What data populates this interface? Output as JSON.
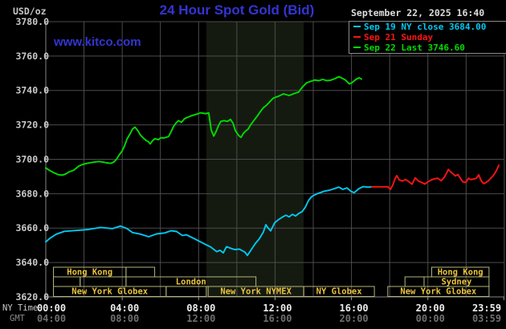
{
  "header": {
    "units_label": "USD/oz",
    "title": "24 Hour Spot Gold (Bid)",
    "datetime": "September 22, 2025 16:40",
    "watermark": "www.kitco.com"
  },
  "legend": {
    "items": [
      {
        "label": "Sep 19 NY close 3684.00",
        "color": "#00c8f0"
      },
      {
        "label": "Sep 21 Sunday",
        "color": "#ff1414"
      },
      {
        "label": "Sep 22 Last 3746.60",
        "color": "#00dc00"
      }
    ]
  },
  "axes": {
    "ny_time_label": "NY Time",
    "gmt_label": "GMT",
    "y_tick_labels": [
      "3780.0",
      "3760.0",
      "3740.0",
      "3720.0",
      "3700.0",
      "3680.0",
      "3660.0",
      "3640.0",
      "3620.0"
    ],
    "y_tick_values": [
      3780,
      3760,
      3740,
      3720,
      3700,
      3680,
      3660,
      3640,
      3620
    ],
    "tick_hours": [
      0,
      4,
      8,
      12,
      16,
      20,
      23.98
    ],
    "ny_tick_labels": [
      "00:00",
      "04:00",
      "08:00",
      "12:00",
      "16:00",
      "20:00",
      "23:59"
    ],
    "gmt_tick_labels": [
      "04:00",
      "08:00",
      "12:00",
      "16:00",
      "20:00",
      "00:00",
      "03:59"
    ]
  },
  "sessions": {
    "border_color": "#b4b478",
    "text_color": "#eac33e",
    "rows": [
      [
        [
          0.4,
          4.2,
          "Hong Kong"
        ],
        [
          4.2,
          5.7,
          ""
        ],
        [
          20.2,
          23.2,
          "Hong Kong"
        ]
      ],
      [
        [
          0.4,
          1.8,
          ""
        ],
        [
          1.8,
          4.2,
          ""
        ],
        [
          4.2,
          11.0,
          "London"
        ],
        [
          18.8,
          19.8,
          ""
        ],
        [
          19.8,
          23.2,
          "Sydney"
        ]
      ],
      [
        [
          0.4,
          6.3,
          "New York Globex"
        ],
        [
          6.3,
          8.4,
          ""
        ],
        [
          8.5,
          13.5,
          "New York NYMEX"
        ],
        [
          13.5,
          17.2,
          "NY Globex"
        ],
        [
          17.9,
          23.2,
          "New York Globex"
        ]
      ]
    ]
  },
  "chart_data": {
    "type": "line",
    "title": "24 Hour Spot Gold (Bid)",
    "xlabel": "NY Time (hours)",
    "ylabel": "USD/oz",
    "ylim": [
      3620,
      3780
    ],
    "xlim_hours": [
      0,
      24
    ],
    "grid": true,
    "background": "#000000",
    "grid_color": "#4c4c4c",
    "shaded_region_hours": [
      8.4,
      13.5
    ],
    "shaded_region_color": "#151a10",
    "series": [
      {
        "name": "Sep 19 (NY close 3684.00)",
        "color": "#00c8f0",
        "points": [
          [
            0,
            3652
          ],
          [
            0.21,
            3654
          ],
          [
            0.55,
            3656.5
          ],
          [
            0.97,
            3658.1
          ],
          [
            1.6,
            3658.6
          ],
          [
            2.23,
            3659.2
          ],
          [
            2.86,
            3660.4
          ],
          [
            3.49,
            3659.7
          ],
          [
            3.91,
            3661.2
          ],
          [
            4.25,
            3659.7
          ],
          [
            4.54,
            3657.4
          ],
          [
            4.96,
            3656.5
          ],
          [
            5.38,
            3655
          ],
          [
            5.8,
            3656.6
          ],
          [
            6.22,
            3657.2
          ],
          [
            6.56,
            3658.5
          ],
          [
            6.85,
            3658
          ],
          [
            7.15,
            3655.7
          ],
          [
            7.36,
            3656.1
          ],
          [
            7.78,
            3653.8
          ],
          [
            8.2,
            3651.4
          ],
          [
            8.62,
            3649.1
          ],
          [
            8.95,
            3646.3
          ],
          [
            9.12,
            3647.1
          ],
          [
            9.29,
            3645.6
          ],
          [
            9.46,
            3649.2
          ],
          [
            9.67,
            3648.3
          ],
          [
            9.88,
            3647.5
          ],
          [
            10.13,
            3647.8
          ],
          [
            10.43,
            3646
          ],
          [
            10.55,
            3644.1
          ],
          [
            10.76,
            3647.5
          ],
          [
            10.97,
            3651
          ],
          [
            11.18,
            3653.8
          ],
          [
            11.39,
            3657.7
          ],
          [
            11.52,
            3662
          ],
          [
            11.64,
            3660
          ],
          [
            11.77,
            3658.4
          ],
          [
            11.98,
            3663.1
          ],
          [
            12.19,
            3665
          ],
          [
            12.4,
            3666.5
          ],
          [
            12.57,
            3667.5
          ],
          [
            12.74,
            3666.5
          ],
          [
            12.91,
            3668
          ],
          [
            13.07,
            3667
          ],
          [
            13.24,
            3668.5
          ],
          [
            13.41,
            3669.5
          ],
          [
            13.58,
            3672
          ],
          [
            13.75,
            3676
          ],
          [
            13.92,
            3678.3
          ],
          [
            14.13,
            3679.6
          ],
          [
            14.34,
            3680.5
          ],
          [
            14.59,
            3681.5
          ],
          [
            14.84,
            3682
          ],
          [
            15.13,
            3683
          ],
          [
            15.34,
            3683.8
          ],
          [
            15.55,
            3682.5
          ],
          [
            15.76,
            3683.4
          ],
          [
            15.97,
            3681.4
          ],
          [
            16.14,
            3680.6
          ],
          [
            16.4,
            3683
          ],
          [
            16.61,
            3684.1
          ],
          [
            16.86,
            3683.8
          ],
          [
            17.07,
            3684
          ]
        ]
      },
      {
        "name": "Sep 21 Sunday",
        "color": "#ff1414",
        "points": [
          [
            17.07,
            3684
          ],
          [
            17.66,
            3684
          ],
          [
            17.91,
            3684
          ],
          [
            18.04,
            3682.5
          ],
          [
            18.16,
            3685
          ],
          [
            18.29,
            3689
          ],
          [
            18.37,
            3690.5
          ],
          [
            18.5,
            3688
          ],
          [
            18.67,
            3687.3
          ],
          [
            18.83,
            3688.3
          ],
          [
            19,
            3687
          ],
          [
            19.17,
            3685.5
          ],
          [
            19.34,
            3689.2
          ],
          [
            19.51,
            3687.3
          ],
          [
            19.68,
            3686.5
          ],
          [
            19.84,
            3685.6
          ],
          [
            20.01,
            3687
          ],
          [
            20.18,
            3688
          ],
          [
            20.35,
            3688.6
          ],
          [
            20.52,
            3689
          ],
          [
            20.69,
            3687.5
          ],
          [
            20.85,
            3689.4
          ],
          [
            20.98,
            3692
          ],
          [
            21.07,
            3694.1
          ],
          [
            21.19,
            3692.7
          ],
          [
            21.32,
            3691.5
          ],
          [
            21.44,
            3690.3
          ],
          [
            21.57,
            3691.2
          ],
          [
            21.7,
            3689
          ],
          [
            21.82,
            3687
          ],
          [
            21.99,
            3686.5
          ],
          [
            22.12,
            3689
          ],
          [
            22.24,
            3688.2
          ],
          [
            22.41,
            3688.5
          ],
          [
            22.54,
            3689
          ],
          [
            22.66,
            3691
          ],
          [
            22.79,
            3687.5
          ],
          [
            22.92,
            3685.8
          ],
          [
            23.04,
            3686.5
          ],
          [
            23.17,
            3687.5
          ],
          [
            23.29,
            3689
          ],
          [
            23.42,
            3690.5
          ],
          [
            23.55,
            3692.7
          ],
          [
            23.63,
            3694.5
          ],
          [
            23.71,
            3696.5
          ]
        ]
      },
      {
        "name": "Sep 22 (Last 3746.60)",
        "color": "#00dc00",
        "points": [
          [
            0,
            3695
          ],
          [
            0.2,
            3693.5
          ],
          [
            0.45,
            3692
          ],
          [
            0.67,
            3691
          ],
          [
            0.88,
            3690.8
          ],
          [
            1.05,
            3691.5
          ],
          [
            1.18,
            3692.5
          ],
          [
            1.47,
            3693.7
          ],
          [
            1.72,
            3696
          ],
          [
            1.93,
            3697
          ],
          [
            2.23,
            3697.8
          ],
          [
            2.56,
            3698.4
          ],
          [
            2.77,
            3698.7
          ],
          [
            2.98,
            3698.4
          ],
          [
            3.19,
            3697.9
          ],
          [
            3.4,
            3697.6
          ],
          [
            3.57,
            3698.4
          ],
          [
            3.7,
            3700
          ],
          [
            3.83,
            3702.3
          ],
          [
            3.99,
            3704.7
          ],
          [
            4.12,
            3707.8
          ],
          [
            4.25,
            3711.7
          ],
          [
            4.41,
            3714.8
          ],
          [
            4.54,
            3717.6
          ],
          [
            4.67,
            3718.7
          ],
          [
            4.83,
            3716.4
          ],
          [
            4.96,
            3714
          ],
          [
            5.09,
            3712.5
          ],
          [
            5.25,
            3710.9
          ],
          [
            5.38,
            3710.1
          ],
          [
            5.47,
            3708.9
          ],
          [
            5.59,
            3710.9
          ],
          [
            5.72,
            3712
          ],
          [
            5.89,
            3711.4
          ],
          [
            6.01,
            3712.5
          ],
          [
            6.18,
            3712.4
          ],
          [
            6.31,
            3712.8
          ],
          [
            6.43,
            3713.3
          ],
          [
            6.56,
            3716
          ],
          [
            6.68,
            3719
          ],
          [
            6.81,
            3721
          ],
          [
            6.94,
            3722.5
          ],
          [
            7.1,
            3721.5
          ],
          [
            7.27,
            3723.7
          ],
          [
            7.57,
            3725.1
          ],
          [
            7.82,
            3726
          ],
          [
            8.11,
            3727
          ],
          [
            8.37,
            3726.5
          ],
          [
            8.53,
            3727
          ],
          [
            8.66,
            3717
          ],
          [
            8.79,
            3713.5
          ],
          [
            8.91,
            3716
          ],
          [
            9.04,
            3719.5
          ],
          [
            9.16,
            3722
          ],
          [
            9.33,
            3722.5
          ],
          [
            9.5,
            3722
          ],
          [
            9.67,
            3723.2
          ],
          [
            9.8,
            3721
          ],
          [
            9.92,
            3716.7
          ],
          [
            10.09,
            3713.9
          ],
          [
            10.22,
            3712.7
          ],
          [
            10.34,
            3715
          ],
          [
            10.47,
            3716.5
          ],
          [
            10.59,
            3717.5
          ],
          [
            10.72,
            3720
          ],
          [
            10.89,
            3722.5
          ],
          [
            11.06,
            3725
          ],
          [
            11.22,
            3727.5
          ],
          [
            11.39,
            3730
          ],
          [
            11.56,
            3731.5
          ],
          [
            11.73,
            3733.5
          ],
          [
            11.9,
            3735.5
          ],
          [
            12.19,
            3736.7
          ],
          [
            12.44,
            3738
          ],
          [
            12.74,
            3737.1
          ],
          [
            13.03,
            3738.3
          ],
          [
            13.24,
            3739.1
          ],
          [
            13.45,
            3742.2
          ],
          [
            13.66,
            3744.5
          ],
          [
            13.87,
            3745.3
          ],
          [
            14.08,
            3746.1
          ],
          [
            14.29,
            3745.7
          ],
          [
            14.5,
            3746.4
          ],
          [
            14.71,
            3745.7
          ],
          [
            14.92,
            3746
          ],
          [
            15.13,
            3746.9
          ],
          [
            15.34,
            3748
          ],
          [
            15.47,
            3747.4
          ],
          [
            15.68,
            3746.1
          ],
          [
            15.89,
            3743.8
          ],
          [
            16.02,
            3744.5
          ],
          [
            16.23,
            3746.4
          ],
          [
            16.4,
            3747.4
          ],
          [
            16.52,
            3746.6
          ]
        ]
      }
    ]
  }
}
